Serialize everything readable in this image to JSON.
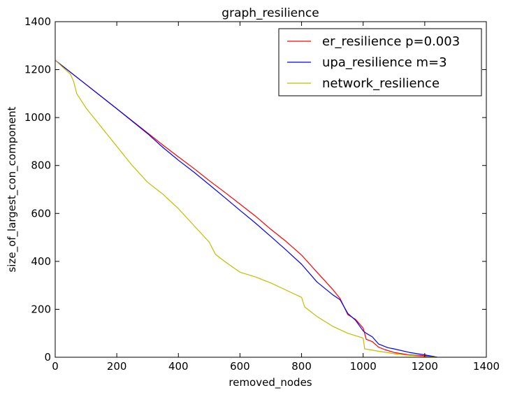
{
  "chart_data": {
    "type": "line",
    "title": "graph_resilience",
    "xlabel": "removed_nodes",
    "ylabel": "size_of_largest_con_component",
    "xlim": [
      0,
      1400
    ],
    "ylim": [
      0,
      1400
    ],
    "xticks": [
      0,
      200,
      400,
      600,
      800,
      1000,
      1200,
      1400
    ],
    "yticks": [
      0,
      200,
      400,
      600,
      800,
      1000,
      1200,
      1400
    ],
    "grid": false,
    "legend_position": "top-right",
    "series": [
      {
        "name": "er_resilience p=0.003",
        "color": "#ff0000",
        "x": [
          0,
          100,
          200,
          300,
          350,
          400,
          450,
          500,
          550,
          600,
          650,
          700,
          750,
          800,
          850,
          900,
          925,
          950,
          975,
          1000,
          1010,
          1030,
          1050,
          1070,
          1100,
          1150,
          1200,
          1230,
          1240
        ],
        "y": [
          1239,
          1138,
          1037,
          936,
          885,
          836,
          788,
          737,
          689,
          639,
          589,
          534,
          483,
          426,
          355,
          285,
          245,
          178,
          158,
          122,
          75,
          65,
          42,
          32,
          20,
          10,
          6,
          2,
          0
        ]
      },
      {
        "name": "upa_resilience m=3",
        "color": "#0000ff",
        "x": [
          0,
          100,
          200,
          300,
          350,
          400,
          450,
          500,
          550,
          600,
          650,
          700,
          750,
          800,
          850,
          900,
          925,
          950,
          975,
          1000,
          1010,
          1030,
          1050,
          1080,
          1100,
          1150,
          1200,
          1230,
          1240
        ],
        "y": [
          1239,
          1138,
          1037,
          933,
          875,
          822,
          773,
          720,
          667,
          613,
          560,
          504,
          447,
          388,
          314,
          262,
          240,
          183,
          155,
          110,
          100,
          85,
          55,
          40,
          35,
          20,
          10,
          3,
          0
        ]
      },
      {
        "name": "network_resilience",
        "color": "#bfbf00",
        "x": [
          0,
          50,
          60,
          70,
          100,
          150,
          200,
          250,
          300,
          350,
          400,
          450,
          500,
          520,
          550,
          600,
          650,
          700,
          750,
          800,
          810,
          850,
          900,
          950,
          1000,
          1005,
          1050,
          1100,
          1150,
          1200,
          1239
        ],
        "y": [
          1239,
          1180,
          1150,
          1100,
          1040,
          960,
          880,
          800,
          730,
          680,
          620,
          550,
          480,
          430,
          400,
          355,
          335,
          310,
          280,
          250,
          210,
          170,
          130,
          100,
          80,
          35,
          25,
          15,
          8,
          3,
          0
        ]
      }
    ]
  }
}
